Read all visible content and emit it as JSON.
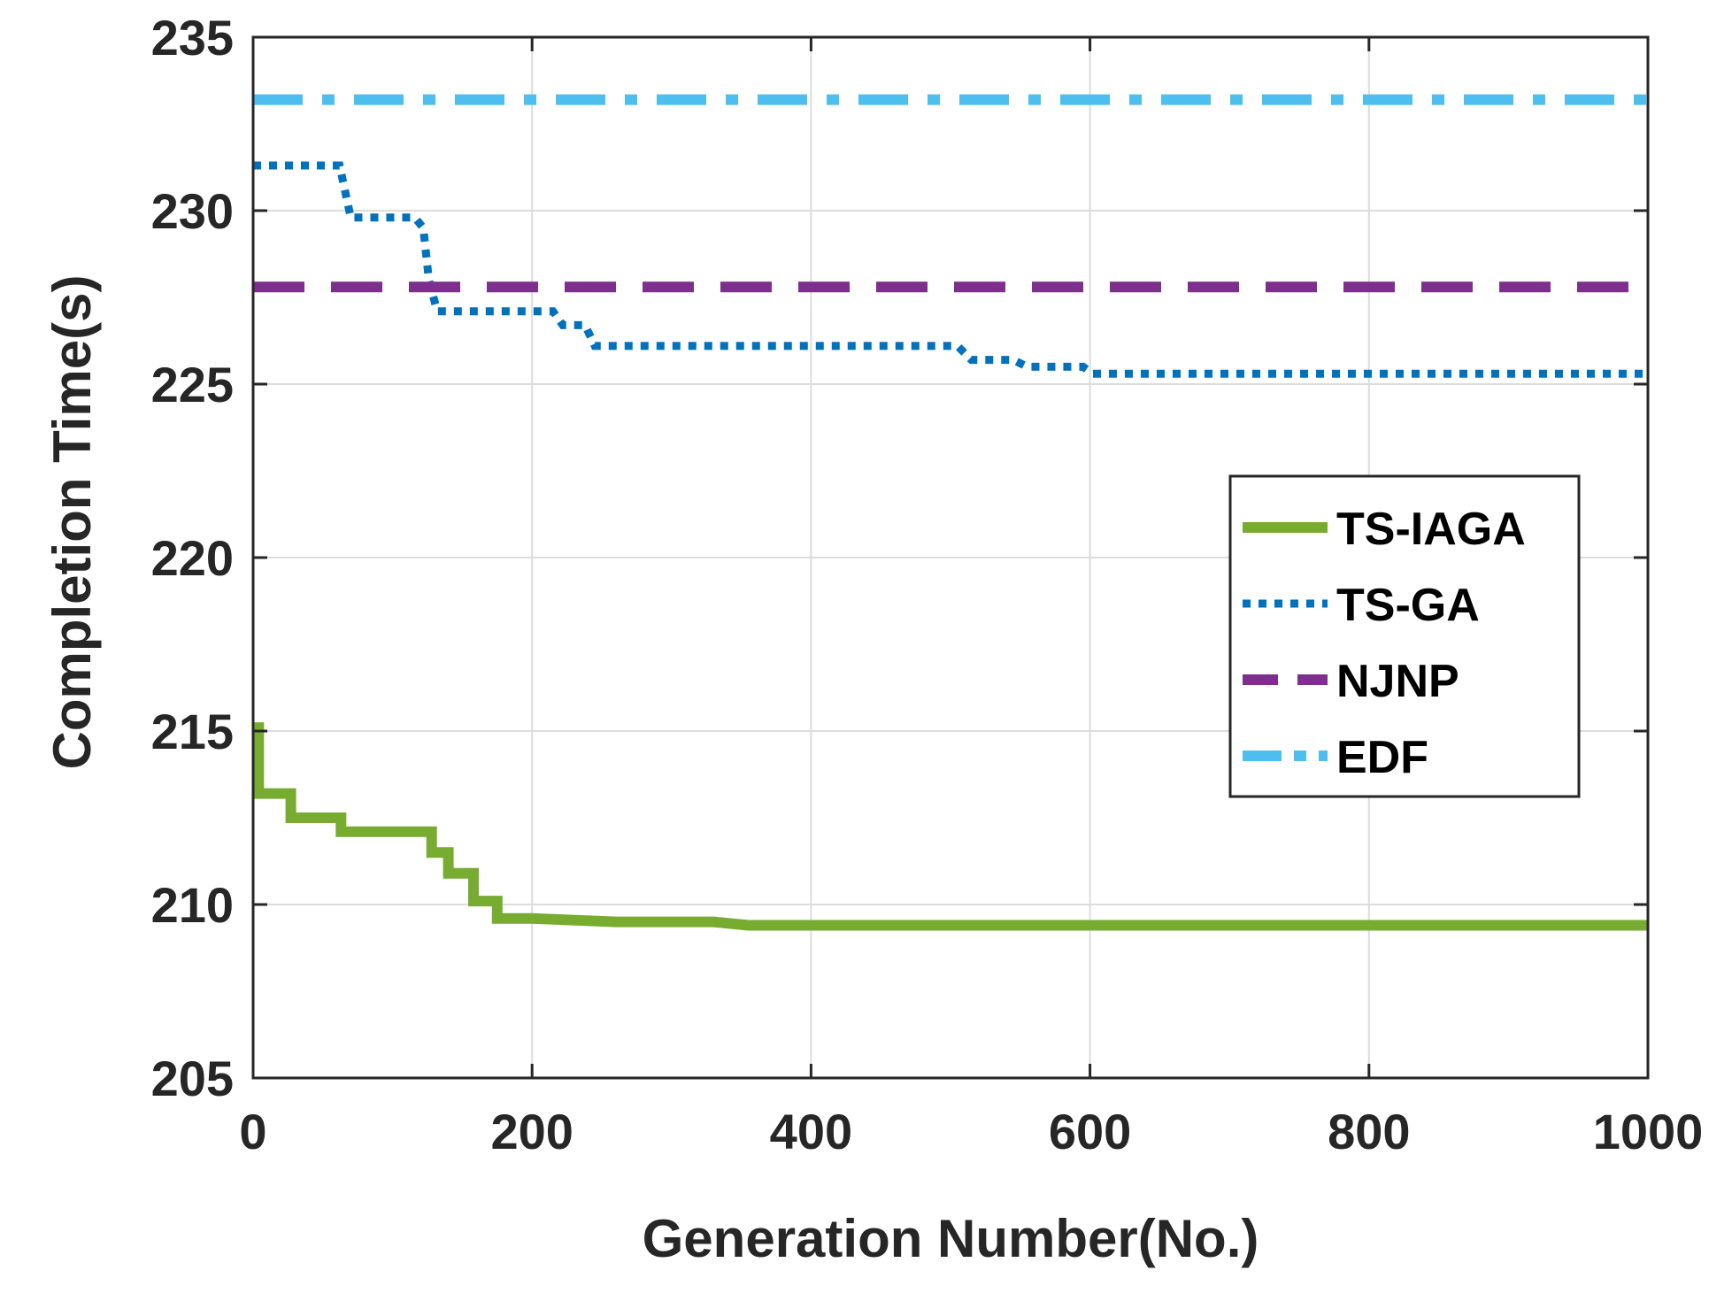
{
  "chart_data": {
    "type": "line",
    "title": "",
    "xlabel": "Generation Number(No.)",
    "ylabel": "Completion Time(s)",
    "xlim": [
      0,
      1000
    ],
    "ylim": [
      205,
      235
    ],
    "xticks": [
      0,
      200,
      400,
      600,
      800,
      1000
    ],
    "yticks": [
      205,
      210,
      215,
      220,
      225,
      230,
      235
    ],
    "xtick_labels": [
      "0",
      "200",
      "400",
      "600",
      "800",
      "1000"
    ],
    "ytick_labels": [
      "205",
      "210",
      "215",
      "220",
      "225",
      "230",
      "235"
    ],
    "grid": true,
    "legend_position": "right-middle",
    "series": [
      {
        "name": "TS-IAGA",
        "color": "#77AC30",
        "style": "solid",
        "x": [
          0,
          4,
          4,
          27,
          27,
          63,
          63,
          128,
          128,
          140,
          140,
          158,
          158,
          175,
          175,
          200,
          260,
          330,
          355,
          1000
        ],
        "y": [
          215.1,
          215.1,
          213.2,
          213.2,
          212.5,
          212.5,
          212.1,
          212.1,
          211.5,
          211.5,
          210.9,
          210.9,
          210.1,
          210.1,
          209.6,
          209.6,
          209.5,
          209.5,
          209.4,
          209.4
        ]
      },
      {
        "name": "TS-GA",
        "color": "#0072BD",
        "style": "dotted",
        "x": [
          0,
          62,
          70,
          116,
          122,
          126,
          132,
          215,
          222,
          238,
          245,
          505,
          515,
          545,
          555,
          595,
          602,
          1000
        ],
        "y": [
          231.3,
          231.3,
          229.8,
          229.8,
          229.5,
          228.0,
          227.1,
          227.1,
          226.7,
          226.7,
          226.1,
          226.1,
          225.7,
          225.7,
          225.5,
          225.5,
          225.3,
          225.3
        ]
      },
      {
        "name": "NJNP",
        "color": "#7E2F8E",
        "style": "dashed",
        "x": [
          0,
          1000
        ],
        "y": [
          227.8,
          227.8
        ]
      },
      {
        "name": "EDF",
        "color": "#4DBEEE",
        "style": "dashdot",
        "x": [
          0,
          1000
        ],
        "y": [
          233.2,
          233.2
        ]
      }
    ]
  }
}
